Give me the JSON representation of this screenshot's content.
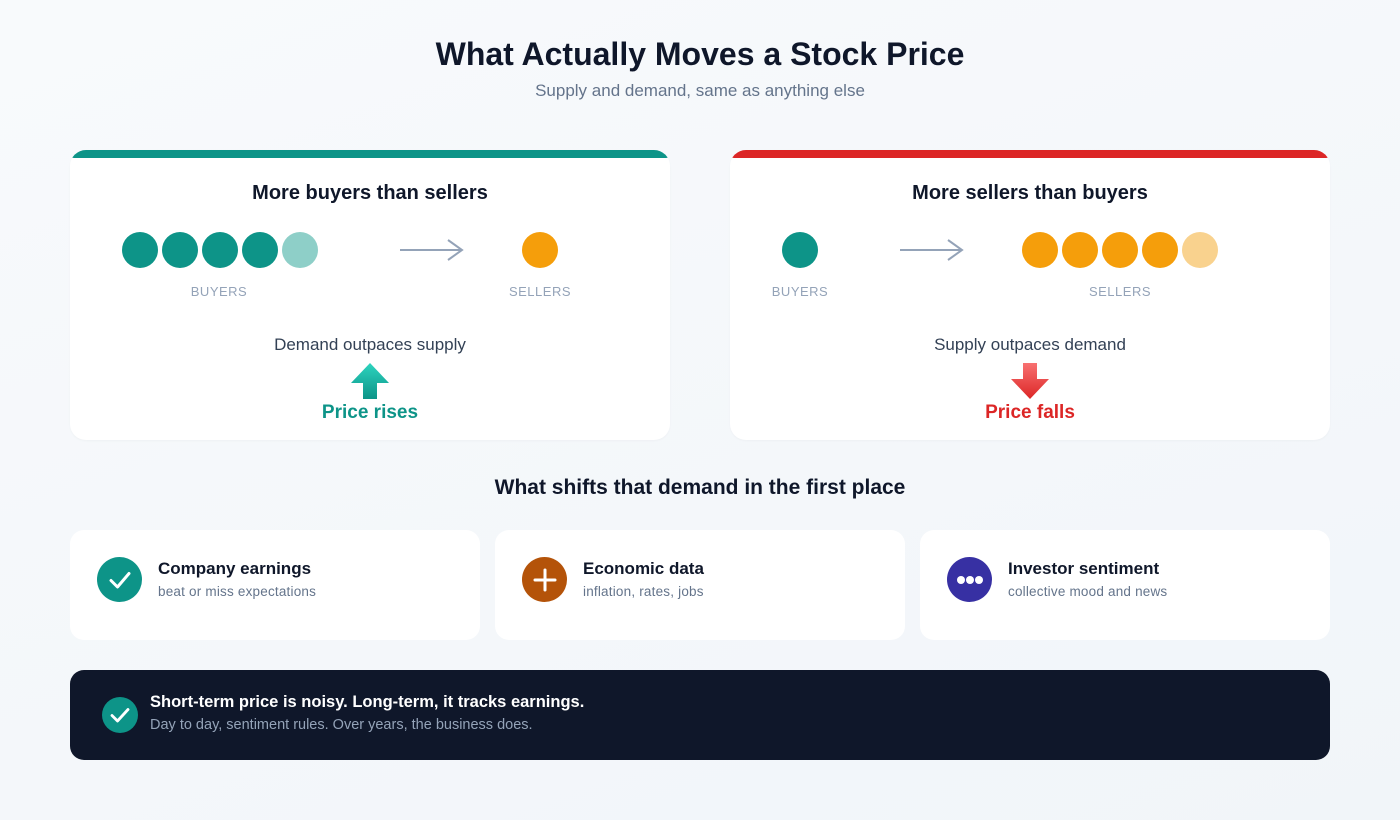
{
  "header": {
    "title": "What Actually Moves a Stock Price",
    "subtitle": "Supply and demand, same as anything else"
  },
  "colors": {
    "teal": "#0d9488",
    "teal_light": "#8ecfc8",
    "amber": "#f59e0b",
    "amber_light": "#f9d28e",
    "red": "#dc2626",
    "navy": "#0f172a",
    "brown": "#b45309",
    "indigo": "#3730a3"
  },
  "scenarios": [
    {
      "heading": "More buyers than sellers",
      "buyers_label": "BUYERS",
      "sellers_label": "SELLERS",
      "buyer_count": 5,
      "seller_count": 1,
      "balance": "Demand outpaces supply",
      "result": "Price rises",
      "direction": "up"
    },
    {
      "heading": "More sellers than buyers",
      "buyers_label": "BUYERS",
      "sellers_label": "SELLERS",
      "buyer_count": 1,
      "seller_count": 5,
      "balance": "Supply outpaces demand",
      "result": "Price falls",
      "direction": "down"
    }
  ],
  "drivers_section": {
    "heading": "What shifts that demand in the first place",
    "items": [
      {
        "title": "Company earnings",
        "subtitle": "beat or miss expectations",
        "icon": "checkmark-icon"
      },
      {
        "title": "Economic data",
        "subtitle": "inflation, rates, jobs",
        "icon": "plus-icon"
      },
      {
        "title": "Investor sentiment",
        "subtitle": "collective mood and news",
        "icon": "ellipsis-icon"
      }
    ]
  },
  "note": {
    "title": "Short-term price is noisy. Long-term, it tracks earnings.",
    "subtitle": "Day to day, sentiment rules. Over years, the business does.",
    "icon": "checkmark-icon"
  }
}
